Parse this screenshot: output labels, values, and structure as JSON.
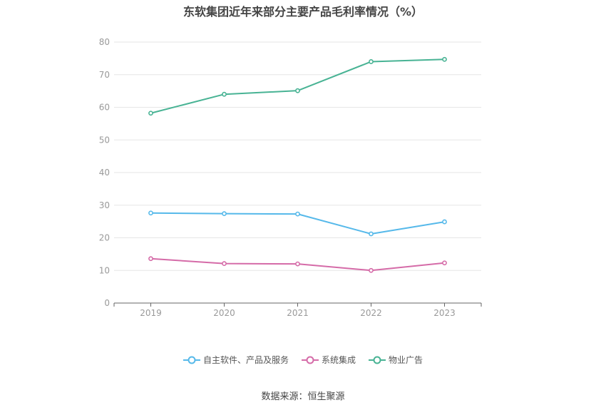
{
  "title": "东软集团近年来部分主要产品毛利率情况（%）",
  "source": "数据来源：恒生聚源",
  "chart_data": {
    "type": "line",
    "title": "东软集团近年来部分主要产品毛利率情况（%）",
    "x": [
      "2019",
      "2020",
      "2021",
      "2022",
      "2023"
    ],
    "ylim": [
      0,
      80
    ],
    "yticks": [
      0,
      10,
      20,
      30,
      40,
      50,
      60,
      70,
      80
    ],
    "grid": true,
    "legend_position": "bottom",
    "series": [
      {
        "name": "自主软件、产品及服务",
        "color": "#56b9ea",
        "values": [
          27.6,
          27.4,
          27.3,
          21.2,
          24.9
        ]
      },
      {
        "name": "系统集成",
        "color": "#d56ba8",
        "values": [
          13.6,
          12.1,
          12.0,
          10.0,
          12.3
        ]
      },
      {
        "name": "物业广告",
        "color": "#48b394",
        "values": [
          58.2,
          64.0,
          65.1,
          74.0,
          74.7
        ]
      }
    ]
  }
}
